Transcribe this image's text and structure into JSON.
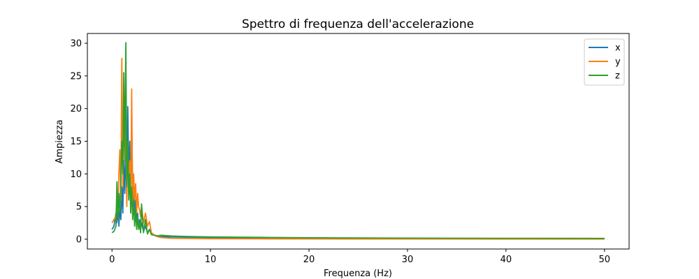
{
  "chart_data": {
    "type": "line",
    "title": "Spettro di frequenza dell'accelerazione",
    "xlabel": "Frequenza (Hz)",
    "ylabel": "Ampiezza",
    "xlim": [
      -2.5,
      52.5
    ],
    "ylim": [
      -1.5,
      31.5
    ],
    "xticks": [
      0,
      10,
      20,
      30,
      40,
      50
    ],
    "yticks": [
      0,
      5,
      10,
      15,
      20,
      25,
      30
    ],
    "grid": false,
    "legend_position": "top-right",
    "series": [
      {
        "name": "x",
        "color": "#1f77b4",
        "x": [
          0,
          0.2,
          0.4,
          0.5,
          0.6,
          0.7,
          0.8,
          0.9,
          1.0,
          1.1,
          1.2,
          1.3,
          1.4,
          1.5,
          1.6,
          1.7,
          1.8,
          1.9,
          2.0,
          2.1,
          2.2,
          2.3,
          2.4,
          2.5,
          2.6,
          2.7,
          2.8,
          2.9,
          3.0,
          3.2,
          3.4,
          3.6,
          3.8,
          4.0,
          4.3,
          4.6,
          5,
          6,
          8,
          10,
          15,
          20,
          30,
          40,
          50
        ],
        "y": [
          1.5,
          2.0,
          4.0,
          2.5,
          6.0,
          2.0,
          5.0,
          3.0,
          8.0,
          4.0,
          12.0,
          7.0,
          14.0,
          6.0,
          20.3,
          9.0,
          15.0,
          6.0,
          18.0,
          7.0,
          9.0,
          3.0,
          6.0,
          2.5,
          4.0,
          1.8,
          3.0,
          1.5,
          2.5,
          1.2,
          2.0,
          1.0,
          1.5,
          0.8,
          0.6,
          0.5,
          0.4,
          0.35,
          0.3,
          0.25,
          0.2,
          0.15,
          0.12,
          0.1,
          0.08
        ]
      },
      {
        "name": "y",
        "color": "#ff7f0e",
        "x": [
          0,
          0.2,
          0.4,
          0.5,
          0.6,
          0.7,
          0.8,
          0.9,
          1.0,
          1.1,
          1.2,
          1.3,
          1.4,
          1.5,
          1.6,
          1.7,
          1.8,
          1.9,
          2.0,
          2.1,
          2.2,
          2.3,
          2.4,
          2.5,
          2.6,
          2.7,
          2.8,
          2.9,
          3.0,
          3.2,
          3.4,
          3.6,
          3.8,
          4.0,
          4.3,
          4.6,
          5,
          6,
          8,
          10,
          15,
          20,
          30,
          40,
          50
        ],
        "y": [
          2.5,
          3.0,
          3.5,
          6.0,
          5.0,
          10.0,
          13.7,
          6.0,
          27.7,
          8.0,
          22.0,
          12.0,
          19.0,
          5.0,
          15.0,
          7.0,
          12.0,
          6.0,
          23.0,
          5.0,
          10.0,
          6.0,
          8.5,
          4.0,
          7.0,
          5.0,
          4.5,
          3.5,
          5.0,
          2.5,
          4.0,
          2.0,
          2.7,
          1.0,
          0.6,
          0.4,
          0.25,
          0.15,
          0.1,
          0.08,
          0.06,
          0.05,
          0.04,
          0.03,
          0.03
        ]
      },
      {
        "name": "z",
        "color": "#2ca02c",
        "x": [
          0,
          0.2,
          0.4,
          0.5,
          0.6,
          0.7,
          0.8,
          0.9,
          1.0,
          1.1,
          1.2,
          1.3,
          1.4,
          1.5,
          1.6,
          1.7,
          1.8,
          1.9,
          2.0,
          2.1,
          2.2,
          2.3,
          2.4,
          2.5,
          2.6,
          2.7,
          2.8,
          2.9,
          3.0,
          3.2,
          3.4,
          3.6,
          3.8,
          4.0,
          4.3,
          4.6,
          5,
          6,
          8,
          10,
          15,
          20,
          30,
          40,
          50
        ],
        "y": [
          1.0,
          1.2,
          2.0,
          8.8,
          3.0,
          7.0,
          4.0,
          9.0,
          15.0,
          10.0,
          25.5,
          12.0,
          30.1,
          8.0,
          15.0,
          6.0,
          10.0,
          4.0,
          8.0,
          3.0,
          6.0,
          2.0,
          4.5,
          1.5,
          3.5,
          1.5,
          2.5,
          1.0,
          5.4,
          1.0,
          3.0,
          0.8,
          1.5,
          0.7,
          0.6,
          0.5,
          0.6,
          0.5,
          0.4,
          0.35,
          0.28,
          0.22,
          0.17,
          0.14,
          0.12
        ]
      }
    ]
  }
}
